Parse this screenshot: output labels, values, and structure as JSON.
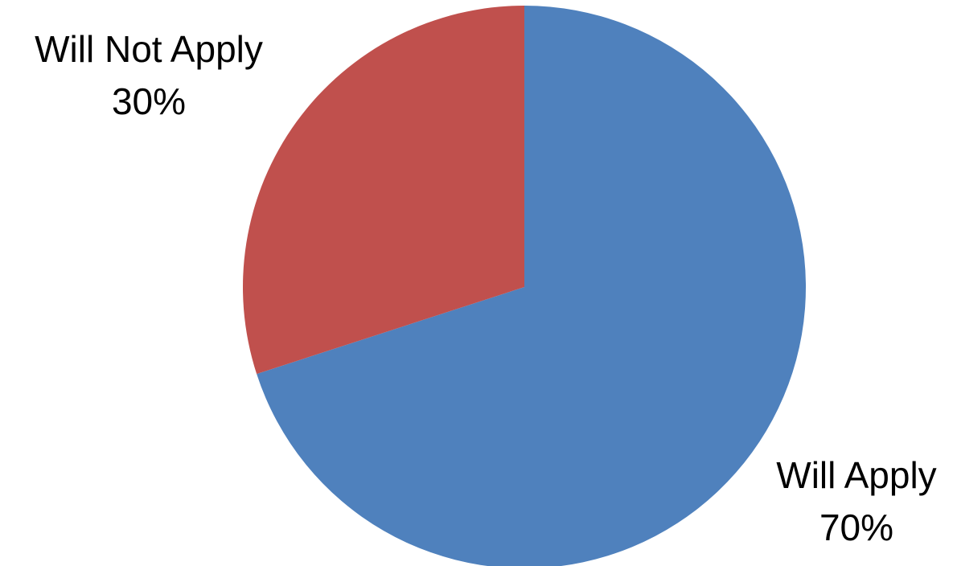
{
  "chart_data": {
    "type": "pie",
    "categories": [
      "Will Apply",
      "Will Not Apply"
    ],
    "values": [
      70,
      30
    ],
    "value_labels": [
      "70%",
      "30%"
    ],
    "colors": [
      "#4f81bd",
      "#c0504d"
    ]
  }
}
